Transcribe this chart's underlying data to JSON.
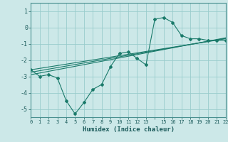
{
  "xlabel": "Humidex (Indice chaleur)",
  "ylabel": "",
  "background_color": "#cce8e8",
  "grid_color": "#99cccc",
  "line_color": "#1a7a6a",
  "xlim": [
    0,
    22
  ],
  "ylim": [
    -5.5,
    1.5
  ],
  "yticks": [
    1,
    0,
    -1,
    -2,
    -3,
    -4,
    -5
  ],
  "curve1_x": [
    0,
    1,
    2,
    3,
    4,
    5,
    6,
    7,
    8,
    9,
    10,
    11,
    12,
    13,
    14,
    15,
    16,
    17,
    18,
    19,
    20,
    21,
    22
  ],
  "curve1_y": [
    -2.6,
    -3.0,
    -2.9,
    -3.1,
    -4.5,
    -5.3,
    -4.6,
    -3.8,
    -3.5,
    -2.4,
    -1.6,
    -1.5,
    -1.9,
    -2.3,
    0.5,
    0.6,
    0.3,
    -0.5,
    -0.7,
    -0.7,
    -0.8,
    -0.8,
    -0.8
  ],
  "line2_x": [
    0,
    22
  ],
  "line2_y": [
    -2.6,
    -0.7
  ],
  "line3_x": [
    0,
    22
  ],
  "line3_y": [
    -2.75,
    -0.67
  ],
  "line4_x": [
    0,
    22
  ],
  "line4_y": [
    -2.9,
    -0.64
  ]
}
